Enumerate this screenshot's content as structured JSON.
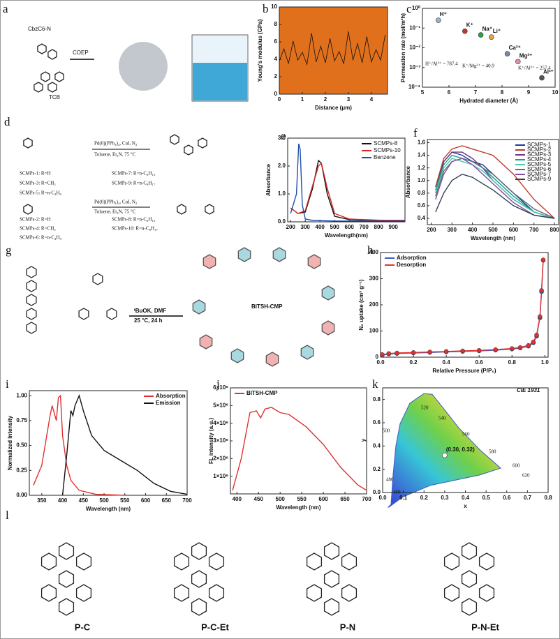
{
  "panels": {
    "a": {
      "label": "a",
      "texts": [
        "CbzC6-N",
        "TCB",
        "COEP"
      ]
    },
    "b": {
      "label": "b",
      "chart": {
        "type": "line",
        "xlabel": "Distance (μm)",
        "ylabel": "Young's modulus (GPa)",
        "xlim": [
          0,
          4.7
        ],
        "ylim": [
          0,
          10
        ],
        "xticks": [
          0,
          1,
          2,
          3,
          4
        ],
        "yticks": [
          0,
          2,
          4,
          6,
          8,
          10
        ],
        "series": [
          {
            "color": "#111111",
            "x": [
              0,
              0.2,
              0.4,
              0.6,
              0.8,
              1,
              1.2,
              1.4,
              1.6,
              1.8,
              2,
              2.2,
              2.4,
              2.6,
              2.8,
              3,
              3.2,
              3.4,
              3.6,
              3.8,
              4,
              4.2,
              4.4,
              4.6
            ],
            "values": [
              3.8,
              5.2,
              3.5,
              6.1,
              3.9,
              4.8,
              3.4,
              7,
              3.7,
              5.5,
              3.6,
              6.4,
              3.8,
              4.9,
              3.5,
              7.2,
              3.9,
              5.8,
              3.6,
              6.6,
              3.7,
              5.1,
              3.9,
              6.8
            ]
          }
        ]
      }
    },
    "c": {
      "label": "c",
      "annotations": [
        "H⁺/Al³⁺ = 787.4",
        "K⁺/Mg²⁺ = 40.9",
        "K⁺/Al³⁺ = 257.4"
      ],
      "chart": {
        "type": "scatter",
        "log_y": true,
        "xlabel": "Hydrated diameter (Å)",
        "ylabel": "Permeation rate (mol/m²h)",
        "xlim": [
          5,
          10
        ],
        "ylim": [
          0.0001,
          1
        ],
        "xticks": [
          5,
          6,
          7,
          8,
          9,
          10
        ],
        "yticks": [
          {
            "value": 1,
            "label": "10⁰"
          },
          {
            "value": 0.1,
            "label": "10⁻¹"
          },
          {
            "value": 0.01,
            "label": "10⁻²"
          },
          {
            "value": 0.001,
            "label": "10⁻³"
          },
          {
            "value": 0.0001,
            "label": "10⁻⁴"
          }
        ],
        "series": [
          {
            "color": "#777777",
            "colors": [
              "#9db4c8",
              "#c0392b",
              "#2e9e4f",
              "#e8a33c",
              "#7a8aa8",
              "#d78fb0",
              "#555555"
            ],
            "labels": [
              "H⁺",
              "K⁺",
              "Na⁺",
              "Li⁺",
              "Ca²⁺",
              "Mg²⁺",
              "Al³⁺"
            ],
            "x": [
              5.6,
              6.6,
              7.2,
              7.6,
              8.2,
              8.6,
              9.5
            ],
            "values": [
              0.25,
              0.07,
              0.045,
              0.035,
              0.005,
              0.002,
              0.0003
            ]
          }
        ]
      }
    },
    "d": {
      "label": "d",
      "texts": [
        "Pd(0)(PPh₃)₄, CuI, N₂",
        "Toluene, Et₃N, 75 °C",
        "SCMPs-1: R=H",
        "SCMPs-7: R=n-C₆H₁₃",
        "SCMPs-3: R=CH₃",
        "SCMPs-9: R=n-C₈H₁₇",
        "SCMPs-5: R=n-C₄H₉",
        "Pd(0)(PPh₃)₄, CuI, N₂",
        "Toluene, Et₃N, 75 °C",
        "SCMPs-2: R=H",
        "SCMPs-8: R=n-C₆H₁₃",
        "SCMPs-4: R=CH₃",
        "SCMPs-10: R=n-C₈H₁₇",
        "SCMPs-6: R=n-C₄H₉"
      ]
    },
    "e": {
      "label": "e",
      "chart": {
        "type": "line",
        "legend": "upper right",
        "xlabel": "Wavelength(nm)",
        "ylabel": "Absorbance",
        "xlim": [
          180,
          980
        ],
        "ylim": [
          0,
          3
        ],
        "xticks": [
          200,
          300,
          400,
          500,
          600,
          700,
          800,
          900
        ],
        "yticks": [
          {
            "value": 0,
            "label": "0.0"
          },
          {
            "value": 1,
            "label": "1.0"
          },
          {
            "value": 2,
            "label": "2.0"
          },
          {
            "value": 3,
            "label": "3.0"
          }
        ],
        "series": [
          {
            "name": "SCMPs-8",
            "color": "#111111",
            "x": [
              200,
              250,
              300,
              350,
              390,
              410,
              450,
              500,
              600,
              800,
              980
            ],
            "values": [
              0.5,
              0.3,
              0.35,
              1.2,
              2.2,
              2.1,
              1,
              0.2,
              0.08,
              0.05,
              0.05
            ]
          },
          {
            "name": "SCMPs-10",
            "color": "#d62728",
            "x": [
              200,
              250,
              300,
              350,
              390,
              410,
              450,
              500,
              600,
              800,
              980
            ],
            "values": [
              0.5,
              0.3,
              0.4,
              1.3,
              2,
              2.1,
              1.2,
              0.3,
              0.1,
              0.06,
              0.05
            ]
          },
          {
            "name": "Benzene",
            "color": "#1f4fa8",
            "x": [
              200,
              240,
              255,
              265,
              280,
              300,
              350,
              500,
              980
            ],
            "values": [
              0.3,
              1,
              2.8,
              2.6,
              0.6,
              0.1,
              0.05,
              0.03,
              0.03
            ]
          }
        ]
      }
    },
    "f": {
      "label": "f",
      "chart": {
        "type": "line",
        "legend": "upper right",
        "xlabel": "Wavelength (nm)",
        "ylabel": "Absorbance",
        "xlim": [
          180,
          820
        ],
        "ylim": [
          0.3,
          1.65
        ],
        "xticks": [
          200,
          300,
          400,
          500,
          600,
          700,
          800
        ],
        "yticks": [
          0.4,
          0.6,
          0.8,
          {
            "value": 1,
            "label": "1.0"
          },
          1.2,
          1.4,
          1.6
        ],
        "series": [
          {
            "name": "SCMPs-1",
            "color": "#1f3a93",
            "x": [
              220,
              260,
              300,
              350,
              400,
              450,
              500,
              600,
              700,
              800
            ],
            "values": [
              0.9,
              1.3,
              1.45,
              1.4,
              1.3,
              1.25,
              1.1,
              0.8,
              0.5,
              0.4
            ]
          },
          {
            "name": "SCMPs-2",
            "color": "#c0392b",
            "x": [
              220,
              260,
              300,
              350,
              400,
              450,
              500,
              600,
              700,
              800
            ],
            "values": [
              0.9,
              1.35,
              1.5,
              1.55,
              1.5,
              1.45,
              1.4,
              1.1,
              0.7,
              0.4
            ]
          },
          {
            "name": "SCMPs-3",
            "color": "#6c3483",
            "x": [
              220,
              260,
              300,
              350,
              400,
              450,
              500,
              600,
              700,
              800
            ],
            "values": [
              0.8,
              1.3,
              1.45,
              1.45,
              1.35,
              1.2,
              1,
              0.7,
              0.5,
              0.4
            ]
          },
          {
            "name": "SCMPs-4",
            "color": "#16a085",
            "x": [
              220,
              260,
              300,
              350,
              400,
              450,
              500,
              600,
              700,
              800
            ],
            "values": [
              0.85,
              1.25,
              1.4,
              1.35,
              1.3,
              1.2,
              1.05,
              0.75,
              0.5,
              0.4
            ]
          },
          {
            "name": "SCMPs-5",
            "color": "#48c9b0",
            "x": [
              220,
              260,
              300,
              350,
              400,
              450,
              500,
              600,
              700,
              800
            ],
            "values": [
              0.8,
              1.2,
              1.35,
              1.3,
              1.25,
              1.15,
              1,
              0.7,
              0.5,
              0.4
            ]
          },
          {
            "name": "SCMPs-6",
            "color": "#5d6d7e",
            "x": [
              220,
              260,
              300,
              350,
              400,
              450,
              500,
              600,
              700,
              800
            ],
            "values": [
              0.75,
              1.15,
              1.3,
              1.35,
              1.3,
              1.2,
              1.1,
              0.8,
              0.55,
              0.4
            ]
          },
          {
            "name": "SCMPs-7",
            "color": "#884ea0",
            "x": [
              220,
              260,
              300,
              350,
              400,
              450,
              500,
              600,
              700,
              800
            ],
            "values": [
              0.7,
              1.1,
              1.3,
              1.35,
              1.25,
              1.1,
              0.95,
              0.65,
              0.45,
              0.4
            ]
          },
          {
            "name": "SCMPs-9",
            "color": "#2e4053",
            "x": [
              220,
              260,
              300,
              350,
              400,
              450,
              500,
              600,
              700,
              800
            ],
            "values": [
              0.5,
              0.8,
              1,
              1.1,
              1.05,
              0.95,
              0.85,
              0.6,
              0.45,
              0.4
            ]
          }
        ]
      }
    },
    "g": {
      "label": "g",
      "texts": [
        "ᵗBuOK, DMF",
        "25 °C, 24 h",
        "BITSH-CMP"
      ]
    },
    "h": {
      "label": "h",
      "chart": {
        "type": "line",
        "markers": true,
        "legend": "upper left",
        "xlabel": "Relative Pressure (P/P₀)",
        "ylabel": "N₂ uptake (cm³ g⁻¹)",
        "xlim": [
          0,
          1.02
        ],
        "ylim": [
          0,
          400
        ],
        "xticks": [
          {
            "value": 0,
            "label": "0.0"
          },
          0.2,
          0.4,
          0.6,
          0.8,
          {
            "value": 1,
            "label": "1.0"
          }
        ],
        "yticks": [
          0,
          100,
          200,
          300,
          400
        ],
        "series": [
          {
            "name": "Adsorption",
            "color": "#3b5cc4",
            "x": [
              0.01,
              0.05,
              0.1,
              0.2,
              0.3,
              0.4,
              0.5,
              0.6,
              0.7,
              0.8,
              0.85,
              0.9,
              0.93,
              0.95,
              0.97,
              0.98,
              0.99
            ],
            "values": [
              8,
              12,
              14,
              16,
              18,
              20,
              22,
              24,
              27,
              31,
              35,
              42,
              55,
              80,
              150,
              250,
              370
            ]
          },
          {
            "name": "Desorption",
            "color": "#e03131",
            "x": [
              0.01,
              0.05,
              0.1,
              0.2,
              0.3,
              0.4,
              0.5,
              0.6,
              0.7,
              0.8,
              0.85,
              0.9,
              0.93,
              0.95,
              0.97,
              0.98,
              0.99
            ],
            "values": [
              10,
              14,
              16,
              18,
              20,
              22,
              24,
              26,
              29,
              33,
              37,
              45,
              58,
              85,
              155,
              255,
              372
            ]
          }
        ]
      }
    },
    "i": {
      "label": "i",
      "chart": {
        "type": "line",
        "legend": "upper right",
        "xlabel": "Wavelength (nm)",
        "ylabel": "Normalized Intensity",
        "xlim": [
          320,
          700
        ],
        "ylim": [
          0,
          1.05
        ],
        "xticks": [
          350,
          400,
          450,
          500,
          550,
          600,
          650,
          700
        ],
        "yticks": [
          {
            "value": 0,
            "label": "0.00"
          },
          {
            "value": 0.25,
            "label": "0.25"
          },
          {
            "value": 0.5,
            "label": "0.50"
          },
          {
            "value": 0.75,
            "label": "0.75"
          },
          {
            "value": 1,
            "label": "1.00"
          }
        ],
        "series": [
          {
            "name": "Absorption",
            "color": "#e03131",
            "x": [
              330,
              350,
              360,
              370,
              375,
              385,
              390,
              395,
              400,
              410,
              420,
              440,
              480,
              550
            ],
            "values": [
              0.1,
              0.3,
              0.55,
              0.8,
              0.9,
              0.75,
              0.98,
              1,
              0.6,
              0.3,
              0.15,
              0.05,
              0.01,
              0
            ]
          },
          {
            "name": "Emission",
            "color": "#111111",
            "x": [
              400,
              410,
              420,
              425,
              430,
              440,
              450,
              470,
              500,
              540,
              580,
              620,
              660,
              700
            ],
            "values": [
              0,
              0.4,
              0.85,
              0.8,
              0.9,
              1,
              0.85,
              0.6,
              0.45,
              0.35,
              0.25,
              0.12,
              0.04,
              0.01
            ]
          }
        ]
      }
    },
    "j": {
      "label": "j",
      "chart": {
        "type": "line",
        "legend": "upper left",
        "xlabel": "Wavelength (nm)",
        "ylabel": "FL intensity (a.u.)",
        "xlim": [
          385,
          700
        ],
        "ylim": [
          0,
          6000000
        ],
        "xticks": [
          400,
          450,
          500,
          550,
          600,
          650,
          700
        ],
        "yticks": [
          {
            "value": 1000000,
            "label": "1×10⁶"
          },
          {
            "value": 2000000,
            "label": "2×10⁶"
          },
          {
            "value": 3000000,
            "label": "3×10⁶"
          },
          {
            "value": 4000000,
            "label": "4×10⁶"
          },
          {
            "value": 5000000,
            "label": "5×10⁶"
          },
          {
            "value": 6000000,
            "label": "6×10⁶"
          }
        ],
        "series": [
          {
            "name": "BITSH-CMP",
            "color": "#e03131",
            "x": [
              390,
              410,
              430,
              445,
              455,
              465,
              480,
              500,
              520,
              560,
              600,
              640,
              680,
              700
            ],
            "values": [
              200000,
              2000000,
              4600000,
              4700000,
              4300000,
              4800000,
              4900000,
              4600000,
              4500000,
              3800000,
              2800000,
              1500000,
              500000,
              200000
            ]
          }
        ]
      }
    },
    "k": {
      "label": "k",
      "title": "CIE 1931",
      "wavelengths": [
        520,
        540,
        560,
        580,
        600,
        620,
        500,
        480,
        460
      ],
      "chart": {
        "type": "scatter",
        "xlabel": "x",
        "ylabel": "y",
        "xlim": [
          0,
          0.8
        ],
        "ylim": [
          0,
          0.9
        ],
        "xticks": [
          {
            "value": 0,
            "label": "0.0"
          },
          0.1,
          0.2,
          0.3,
          0.4,
          0.5,
          0.6,
          0.7,
          0.8
        ],
        "yticks": [
          {
            "value": 0,
            "label": "0.0"
          },
          0.2,
          0.4,
          0.6,
          0.8
        ],
        "series": [
          {
            "color": "#ffffff",
            "labels": [
              "(0.30, 0.32)"
            ],
            "x": [
              0.3
            ],
            "values": [
              0.32
            ]
          }
        ]
      }
    },
    "l": {
      "label": "l",
      "names": [
        "P-C",
        "P-C-Et",
        "P-N",
        "P-N-Et"
      ]
    }
  }
}
